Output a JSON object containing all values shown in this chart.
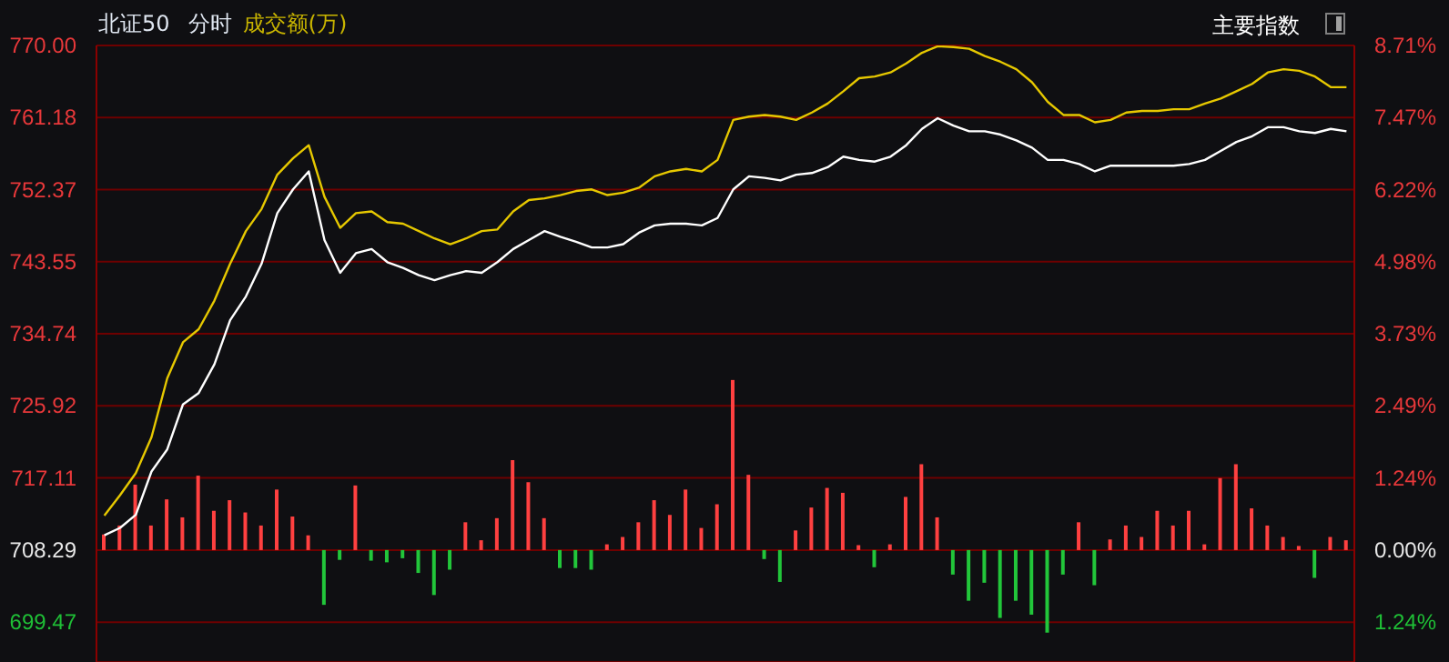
{
  "chart_data": {
    "type": "line",
    "title": "北证50",
    "subtitle": "分时",
    "annotations": [
      "成交额(万)",
      "主要指数"
    ],
    "categories": [
      null,
      null,
      null,
      null,
      null,
      null,
      null,
      null,
      null,
      null,
      null,
      null,
      null,
      null,
      null,
      null,
      null,
      null,
      null,
      null,
      null,
      null,
      null,
      null,
      null,
      null,
      null,
      null,
      null,
      null,
      null,
      null,
      null,
      null,
      null,
      null,
      null,
      null,
      null,
      null,
      null,
      null,
      null,
      null,
      null,
      null,
      null,
      null,
      null,
      null,
      null,
      null,
      null,
      null,
      null,
      null,
      null,
      null,
      null,
      null,
      null,
      null,
      null,
      null,
      null,
      null,
      null,
      null,
      null,
      null,
      null,
      null,
      null,
      null,
      null,
      null,
      null,
      null,
      null,
      null
    ],
    "series": [
      {
        "type": "bar",
        "base": [
          708.29,
          708.29,
          708.29,
          708.29,
          708.29,
          708.29,
          708.29,
          708.29,
          708.29,
          708.29,
          708.29,
          708.29,
          708.29,
          708.29,
          708.29,
          708.29,
          708.29,
          708.29,
          708.29,
          708.29,
          708.29,
          708.29,
          708.29,
          708.29,
          708.29,
          708.29,
          708.29,
          708.29,
          708.29,
          708.29,
          708.29,
          708.29,
          708.29,
          708.29,
          708.29,
          708.29,
          708.29,
          708.29,
          708.29,
          708.29,
          708.29,
          708.29,
          708.29,
          708.29,
          708.29,
          708.29,
          708.29,
          708.29,
          708.29,
          708.29,
          708.29,
          708.29,
          708.29,
          708.29,
          708.29,
          708.29,
          708.29,
          708.29,
          708.29,
          708.29,
          708.29,
          708.29,
          708.29,
          708.29,
          708.29,
          708.29,
          708.29,
          708.29,
          708.29,
          708.29,
          708.29,
          708.29,
          708.29,
          708.29,
          708.29,
          708.29,
          708.29,
          708.29,
          708.29,
          708.29
        ],
        "values": [
          1.9,
          3.0,
          8.0,
          3.0,
          6.2,
          4.0,
          9.1,
          4.8,
          6.1,
          4.6,
          3.0,
          7.4,
          4.1,
          1.8,
          -6.7,
          -1.2,
          7.9,
          -1.3,
          -1.5,
          -1.0,
          -2.8,
          -5.5,
          -2.4,
          3.4,
          1.2,
          3.9,
          11.0,
          8.3,
          3.9,
          -2.2,
          -2.2,
          -2.4,
          0.7,
          1.6,
          3.4,
          6.1,
          4.3,
          7.4,
          2.7,
          5.6,
          20.8,
          9.2,
          -1.1,
          -3.9,
          2.4,
          5.2,
          7.6,
          7.0,
          0.6,
          -2.1,
          0.7,
          6.5,
          10.5,
          4.0,
          -3.0,
          -6.2,
          -4.0,
          -8.3,
          -6.2,
          -7.9,
          -10.1,
          -3.0,
          3.4,
          -4.3,
          1.3,
          3.0,
          1.6,
          4.8,
          3.0,
          4.8,
          0.7,
          8.8,
          10.5,
          5.1,
          3.0,
          1.6,
          0.5,
          -3.4,
          1.6,
          1.2
        ],
        "colors": [
          "#ff4040",
          "#ff4040",
          "#ff4040",
          "#ff4040",
          "#ff4040",
          "#ff4040",
          "#ff4040",
          "#ff4040",
          "#ff4040",
          "#ff4040",
          "#ff4040",
          "#ff4040",
          "#ff4040",
          "#ff4040",
          "#22c63a",
          "#22c63a",
          "#ff4040",
          "#22c63a",
          "#22c63a",
          "#22c63a",
          "#22c63a",
          "#22c63a",
          "#22c63a",
          "#ff4040",
          "#ff4040",
          "#ff4040",
          "#ff4040",
          "#ff4040",
          "#ff4040",
          "#22c63a",
          "#22c63a",
          "#22c63a",
          "#ff4040",
          "#ff4040",
          "#ff4040",
          "#ff4040",
          "#ff4040",
          "#ff4040",
          "#ff4040",
          "#ff4040",
          "#ff4040",
          "#ff4040",
          "#22c63a",
          "#22c63a",
          "#ff4040",
          "#ff4040",
          "#ff4040",
          "#ff4040",
          "#ff4040",
          "#22c63a",
          "#ff4040",
          "#ff4040",
          "#ff4040",
          "#ff4040",
          "#22c63a",
          "#22c63a",
          "#22c63a",
          "#22c63a",
          "#22c63a",
          "#22c63a",
          "#22c63a",
          "#22c63a",
          "#ff4040",
          "#22c63a",
          "#ff4040",
          "#ff4040",
          "#ff4040",
          "#ff4040",
          "#ff4040",
          "#ff4040",
          "#ff4040",
          "#ff4040",
          "#ff4040",
          "#ff4040",
          "#ff4040",
          "#ff4040",
          "#ff4040",
          "#22c63a",
          "#ff4040",
          "#ff4040"
        ]
      },
      {
        "color": "#ffffff",
        "values": [
          710.1,
          711.0,
          712.6,
          717.9,
          720.6,
          726.1,
          727.5,
          731.0,
          736.4,
          739.3,
          743.3,
          749.5,
          752.4,
          754.6,
          746.2,
          742.2,
          744.6,
          745.1,
          743.5,
          742.8,
          741.9,
          741.3,
          741.9,
          742.4,
          742.2,
          743.5,
          745.1,
          746.2,
          747.3,
          746.6,
          746.0,
          745.3,
          745.3,
          745.7,
          747.1,
          748.0,
          748.2,
          748.2,
          748.0,
          748.9,
          752.4,
          754.0,
          753.8,
          753.5,
          754.2,
          754.4,
          755.1,
          756.4,
          756.0,
          755.8,
          756.4,
          757.8,
          759.8,
          761.1,
          760.2,
          759.5,
          759.5,
          759.1,
          758.4,
          757.5,
          756.0,
          756.0,
          755.5,
          754.6,
          755.3,
          755.3,
          755.3,
          755.3,
          755.3,
          755.5,
          756.0,
          757.1,
          758.2,
          758.9,
          760.0,
          760.0,
          759.5,
          759.3,
          759.8,
          759.5
        ]
      },
      {
        "color": "#e6c800",
        "values": [
          712.5,
          715.0,
          717.7,
          722.1,
          729.3,
          733.7,
          735.3,
          738.8,
          743.3,
          747.3,
          750.0,
          754.2,
          756.2,
          757.8,
          751.5,
          747.7,
          749.5,
          749.7,
          748.4,
          748.2,
          747.3,
          746.4,
          745.7,
          746.4,
          747.3,
          747.5,
          749.7,
          751.1,
          751.3,
          751.7,
          752.2,
          752.4,
          751.7,
          752.0,
          752.6,
          754.0,
          754.6,
          754.9,
          754.6,
          756.0,
          760.9,
          761.3,
          761.5,
          761.3,
          760.9,
          761.8,
          762.9,
          764.4,
          766.0,
          766.2,
          766.7,
          767.8,
          769.1,
          769.9,
          769.8,
          769.6,
          768.7,
          768.0,
          767.1,
          765.5,
          763.1,
          761.5,
          761.5,
          760.6,
          760.9,
          761.8,
          762.0,
          762.0,
          762.2,
          762.2,
          762.9,
          763.5,
          764.4,
          765.3,
          766.7,
          767.1,
          766.9,
          766.2,
          764.9,
          764.9
        ]
      }
    ],
    "ylim": [
      694.6,
      770
    ],
    "yticks": [
      699.47,
      708.29,
      717.11,
      725.92,
      734.74,
      743.55,
      752.37,
      761.18,
      {
        "value": 770,
        "label": "770.00"
      }
    ],
    "y2lim": [
      -1.93,
      8.71
    ],
    "y2ticks": [
      {
        "value": -1.24,
        "label": "1.24%"
      },
      {
        "value": 0,
        "label": "0.00%"
      },
      {
        "value": 1.24,
        "label": "1.24%"
      },
      {
        "value": 2.49,
        "label": "2.49%"
      },
      {
        "value": 3.73,
        "label": "3.73%"
      },
      {
        "value": 4.98,
        "label": "4.98%"
      },
      {
        "value": 6.22,
        "label": "6.22%"
      },
      {
        "value": 7.47,
        "label": "7.47%"
      },
      {
        "value": 8.71,
        "label": "8.71%"
      }
    ],
    "grid": "y",
    "legend": false,
    "marker": "none",
    "line_style": "solid",
    "tick_labels": "y"
  }
}
